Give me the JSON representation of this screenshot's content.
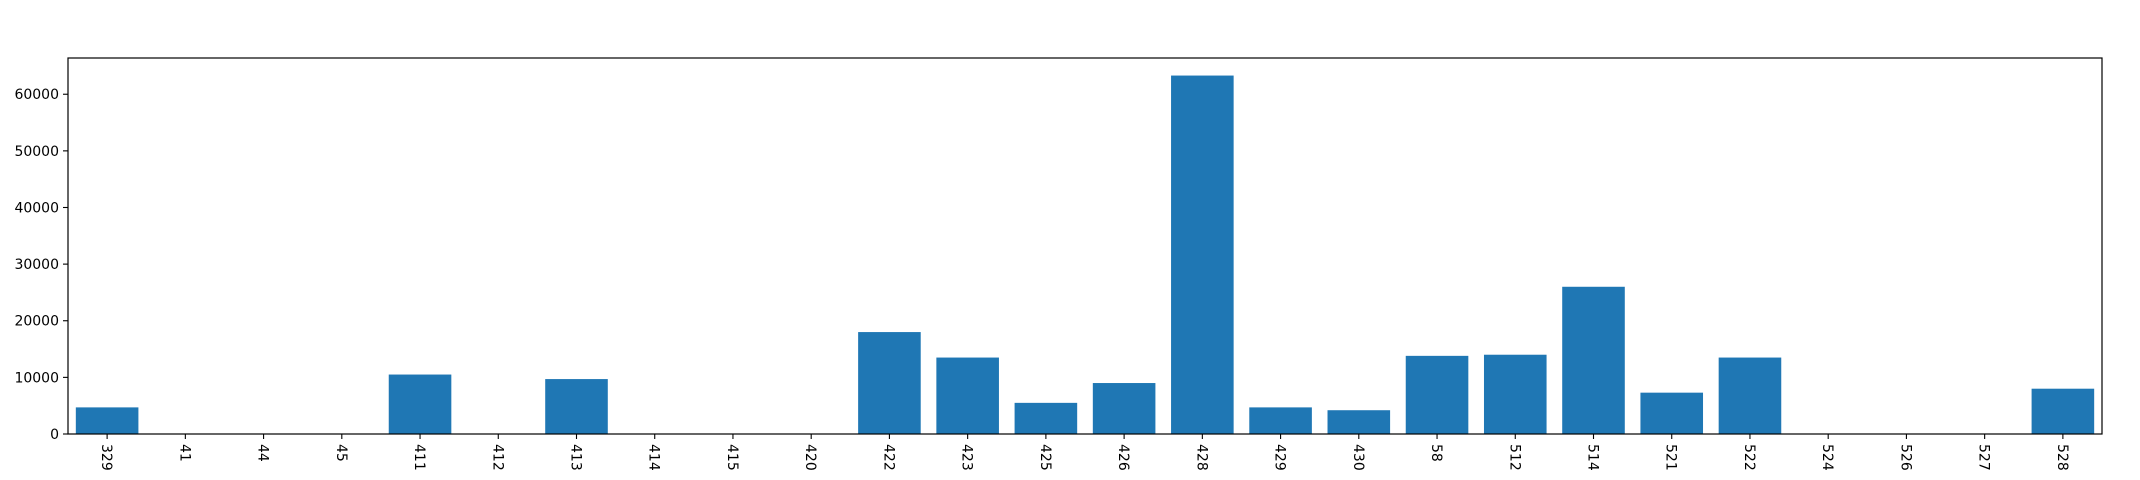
{
  "chart_data": {
    "type": "bar",
    "title": "",
    "xlabel": "",
    "ylabel": "",
    "categories": [
      "329",
      "41",
      "44",
      "45",
      "411",
      "412",
      "413",
      "414",
      "415",
      "420",
      "422",
      "423",
      "425",
      "426",
      "428",
      "429",
      "430",
      "58",
      "512",
      "514",
      "521",
      "522",
      "524",
      "526",
      "527",
      "528"
    ],
    "values": [
      4700,
      0,
      0,
      0,
      10500,
      0,
      9700,
      0,
      0,
      0,
      18000,
      13500,
      5500,
      9000,
      63300,
      4700,
      4200,
      13800,
      14000,
      26000,
      7300,
      13500,
      0,
      0,
      0,
      8000
    ],
    "ylim": [
      0,
      66400
    ],
    "yticks": [
      0,
      10000,
      20000,
      30000,
      40000,
      50000,
      60000
    ],
    "ytick_labels": [
      "0",
      "10000",
      "20000",
      "30000",
      "40000",
      "50000",
      "60000"
    ],
    "bar_color": "#1f77b4",
    "grid": false,
    "legend": "none"
  }
}
